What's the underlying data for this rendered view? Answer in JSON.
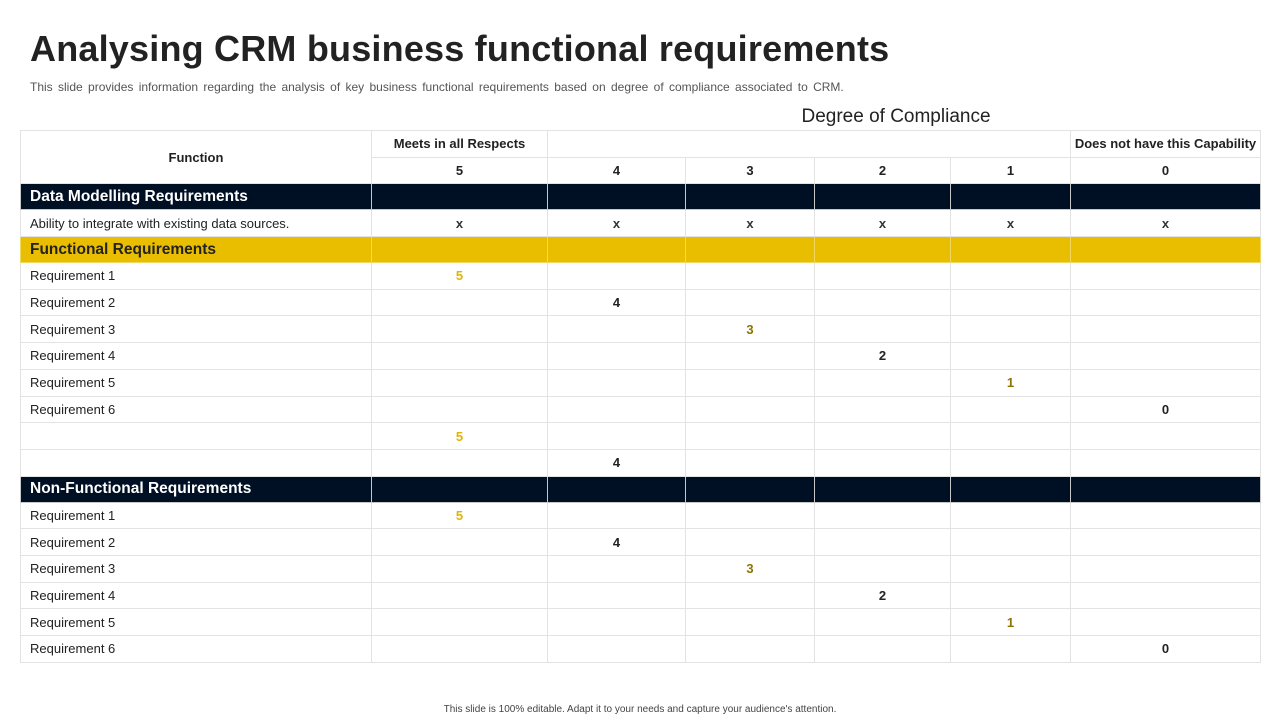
{
  "title": "Analysing CRM business functional requirements",
  "subtitle": "This slide provides information regarding the analysis of key business functional requirements based on degree of compliance associated to CRM.",
  "compliance_heading": "Degree of Compliance",
  "header": {
    "function_label": "Function",
    "meets_label": "Meets in all Respects",
    "does_not_label": "Does not have this Capability",
    "scores": [
      "5",
      "4",
      "3",
      "2",
      "1",
      "0"
    ]
  },
  "colors": {
    "dark_band": "#001024",
    "yellow_band": "#e9bd00",
    "score_gold": "#e0b400",
    "score_olive": "#8c7400"
  },
  "sections": {
    "data_modelling": {
      "label": "Data Modelling Requirements",
      "row_label": "Ability to integrate with existing data sources.",
      "marks": [
        "x",
        "x",
        "x",
        "x",
        "x",
        "x"
      ]
    },
    "functional": {
      "label": "Functional Requirements",
      "rows": [
        {
          "label": "Requirement 1",
          "value": "5"
        },
        {
          "label": "Requirement 2",
          "value": "4"
        },
        {
          "label": "Requirement 3",
          "value": "3"
        },
        {
          "label": "Requirement 4",
          "value": "2"
        },
        {
          "label": "Requirement 5",
          "value": "1"
        },
        {
          "label": "Requirement 6",
          "value": "0"
        },
        {
          "label": "",
          "value": "5"
        },
        {
          "label": "",
          "value": "4"
        }
      ]
    },
    "non_functional": {
      "label": "Non-Functional Requirements",
      "rows": [
        {
          "label": "Requirement 1",
          "value": "5"
        },
        {
          "label": "Requirement 2",
          "value": "4"
        },
        {
          "label": "Requirement 3",
          "value": "3"
        },
        {
          "label": "Requirement 4",
          "value": "2"
        },
        {
          "label": "Requirement 5",
          "value": "1"
        },
        {
          "label": "Requirement 6",
          "value": "0"
        }
      ]
    }
  },
  "footer": "This slide is 100% editable. Adapt it to your needs and capture your audience's attention."
}
